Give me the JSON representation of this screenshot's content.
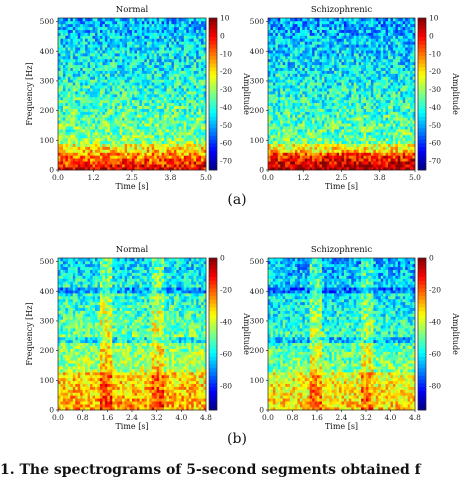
{
  "caption": "1. The spectrograms of 5-second segments obtained f",
  "panels": {
    "a_label": "(a)",
    "b_label": "(b)"
  },
  "chart_data": [
    {
      "type": "heatmap",
      "title": "Normal",
      "xlabel": "Time [s]",
      "ylabel": "Frequency [Hz]",
      "xlim": [
        0,
        5
      ],
      "ylim": [
        0,
        512
      ],
      "x_ticks": [
        "0.0",
        "1.2",
        "2.5",
        "3.8",
        "5.0"
      ],
      "y_ticks": [
        "0",
        "100",
        "200",
        "300",
        "400",
        "500"
      ],
      "colorbar_label": "Amplitude",
      "colorbar_ticks": [
        "10",
        "0",
        "-10",
        "-20",
        "-30",
        "-40",
        "-50",
        "-60",
        "-70"
      ],
      "colorbar_range": [
        -75,
        10
      ]
    },
    {
      "type": "heatmap",
      "title": "Schizophrenic",
      "xlabel": "Time [s]",
      "ylabel": "",
      "xlim": [
        0,
        5
      ],
      "ylim": [
        0,
        512
      ],
      "x_ticks": [
        "0.0",
        "1.2",
        "2.5",
        "3.8",
        "5.0"
      ],
      "y_ticks": [
        "0",
        "100",
        "200",
        "300",
        "400",
        "500"
      ],
      "colorbar_label": "Amplitude",
      "colorbar_ticks": [
        "10",
        "0",
        "-10",
        "-20",
        "-30",
        "-40",
        "-50",
        "-60",
        "-70"
      ],
      "colorbar_range": [
        -75,
        10
      ]
    },
    {
      "type": "heatmap",
      "title": "Normal",
      "xlabel": "Time [s]",
      "ylabel": "Frequency [Hz]",
      "xlim": [
        0,
        4.8
      ],
      "ylim": [
        0,
        512
      ],
      "x_ticks": [
        "0.0",
        "0.8",
        "1.6",
        "2.4",
        "3.2",
        "4.0",
        "4.8"
      ],
      "y_ticks": [
        "0",
        "100",
        "200",
        "300",
        "400",
        "500"
      ],
      "colorbar_label": "Amplitude",
      "colorbar_ticks": [
        "0",
        "-20",
        "-40",
        "-60",
        "-80"
      ],
      "colorbar_range": [
        -95,
        0
      ]
    },
    {
      "type": "heatmap",
      "title": "Schizophrenic",
      "xlabel": "Time [s]",
      "ylabel": "",
      "xlim": [
        0,
        4.8
      ],
      "ylim": [
        0,
        512
      ],
      "x_ticks": [
        "0.0",
        "0.8",
        "1.6",
        "2.4",
        "3.2",
        "4.0",
        "4.8"
      ],
      "y_ticks": [
        "0",
        "100",
        "200",
        "300",
        "400",
        "500"
      ],
      "colorbar_label": "Amplitude",
      "colorbar_ticks": [
        "0",
        "-20",
        "-40",
        "-60",
        "-80"
      ],
      "colorbar_range": [
        -95,
        0
      ]
    }
  ]
}
